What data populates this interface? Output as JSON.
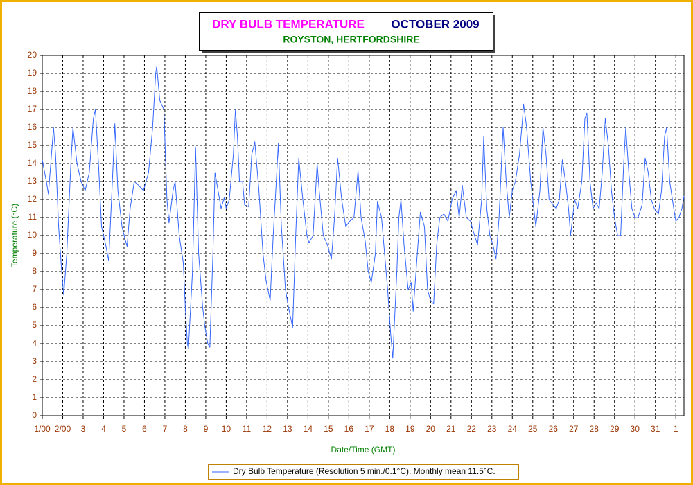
{
  "chart_data": {
    "type": "line",
    "title": "DRY BULB TEMPERATURE",
    "title_period": "OCTOBER 2009",
    "subtitle": "ROYSTON, HERTFORDSHIRE",
    "x_label": "Date/Time (GMT)",
    "y_label": "Temperature (°C)",
    "xlim": [
      0,
      31.4
    ],
    "ylim": [
      0,
      20
    ],
    "xticks": [
      {
        "value": 0,
        "label": "1/00"
      },
      {
        "value": 1,
        "label": "2/00"
      },
      {
        "value": 2,
        "label": "3"
      },
      {
        "value": 3,
        "label": "4"
      },
      {
        "value": 4,
        "label": "5"
      },
      {
        "value": 5,
        "label": "6"
      },
      {
        "value": 6,
        "label": "7"
      },
      {
        "value": 7,
        "label": "8"
      },
      {
        "value": 8,
        "label": "9"
      },
      {
        "value": 9,
        "label": "10"
      },
      {
        "value": 10,
        "label": "11"
      },
      {
        "value": 11,
        "label": "12"
      },
      {
        "value": 12,
        "label": "13"
      },
      {
        "value": 13,
        "label": "14"
      },
      {
        "value": 14,
        "label": "15"
      },
      {
        "value": 15,
        "label": "16"
      },
      {
        "value": 16,
        "label": "17"
      },
      {
        "value": 17,
        "label": "18"
      },
      {
        "value": 18,
        "label": "19"
      },
      {
        "value": 19,
        "label": "20"
      },
      {
        "value": 20,
        "label": "21"
      },
      {
        "value": 21,
        "label": "22"
      },
      {
        "value": 22,
        "label": "23"
      },
      {
        "value": 23,
        "label": "24"
      },
      {
        "value": 24,
        "label": "25"
      },
      {
        "value": 25,
        "label": "26"
      },
      {
        "value": 26,
        "label": "27"
      },
      {
        "value": 27,
        "label": "28"
      },
      {
        "value": 28,
        "label": "29"
      },
      {
        "value": 29,
        "label": "30"
      },
      {
        "value": 30,
        "label": "31"
      },
      {
        "value": 31,
        "label": "1"
      }
    ],
    "yticks": [
      0,
      1,
      2,
      3,
      4,
      5,
      6,
      7,
      8,
      9,
      10,
      11,
      12,
      13,
      14,
      15,
      16,
      17,
      18,
      19,
      20
    ],
    "grid": true,
    "legend": "bottom",
    "x": [
      0,
      0.2,
      0.3,
      0.45,
      0.55,
      0.65,
      0.8,
      0.95,
      1.05,
      1.2,
      1.4,
      1.5,
      1.7,
      1.9,
      2.1,
      2.3,
      2.5,
      2.6,
      2.75,
      2.9,
      3.1,
      3.25,
      3.45,
      3.55,
      3.7,
      3.9,
      4.05,
      4.15,
      4.3,
      4.5,
      4.7,
      4.95,
      5.2,
      5.4,
      5.55,
      5.6,
      5.75,
      5.95,
      6.1,
      6.2,
      6.4,
      6.5,
      6.7,
      6.9,
      7.0,
      7.1,
      7.15,
      7.35,
      7.5,
      7.65,
      7.85,
      7.95,
      8.1,
      8.2,
      8.35,
      8.45,
      8.6,
      8.75,
      8.9,
      9.0,
      9.15,
      9.35,
      9.45,
      9.55,
      9.65,
      9.8,
      9.9,
      10.1,
      10.25,
      10.4,
      10.6,
      10.8,
      10.95,
      11.15,
      11.3,
      11.45,
      11.55,
      11.7,
      11.9,
      12.05,
      12.25,
      12.4,
      12.55,
      12.75,
      12.95,
      13.05,
      13.25,
      13.45,
      13.55,
      13.75,
      13.95,
      14.15,
      14.3,
      14.45,
      14.65,
      14.85,
      15.05,
      15.25,
      15.45,
      15.6,
      15.8,
      15.95,
      16.1,
      16.3,
      16.4,
      16.6,
      16.75,
      16.9,
      17.05,
      17.15,
      17.35,
      17.45,
      17.55,
      17.7,
      17.9,
      18.05,
      18.15,
      18.35,
      18.5,
      18.7,
      18.85,
      19.0,
      19.15,
      19.3,
      19.45,
      19.65,
      19.85,
      20.05,
      20.25,
      20.4,
      20.55,
      20.75,
      20.95,
      21.15,
      21.3,
      21.5,
      21.6,
      21.75,
      21.9,
      22.05,
      22.2,
      22.35,
      22.55,
      22.7,
      22.85,
      23.0,
      23.15,
      23.35,
      23.5,
      23.55,
      23.7,
      23.9,
      24.05,
      24.15,
      24.35,
      24.5,
      24.65,
      24.8,
      25.0,
      25.15,
      25.3,
      25.45,
      25.6,
      25.75,
      25.85,
      26.05,
      26.2,
      26.4,
      26.55,
      26.65,
      26.8,
      26.95,
      27.1,
      27.25,
      27.4,
      27.55,
      27.7,
      27.85,
      28.0,
      28.15,
      28.3,
      28.45,
      28.55,
      28.7,
      28.85,
      29.0,
      29.15,
      29.35,
      29.5,
      29.65,
      29.8,
      29.95,
      30.15,
      30.3,
      30.45,
      30.55,
      30.7,
      30.9,
      31.0,
      31.15,
      31.3,
      31.4
    ],
    "series": [
      {
        "name": "Dry Bulb Temperature (Resolution 5 min./0.1°C). Monthly mean 11.5°C.",
        "color": "#3366ff",
        "values": [
          14.2,
          13.0,
          12.3,
          14.5,
          16.0,
          14.5,
          10.5,
          8.0,
          6.7,
          9.0,
          14.0,
          16.0,
          14.0,
          13.0,
          12.5,
          13.5,
          16.5,
          17.0,
          14.0,
          10.5,
          9.5,
          8.6,
          13.5,
          16.2,
          12.5,
          10.5,
          9.8,
          9.4,
          11.5,
          13.0,
          12.8,
          12.5,
          13.5,
          16.0,
          19.0,
          19.4,
          17.5,
          17.0,
          12.0,
          10.7,
          12.5,
          13.0,
          10.0,
          8.5,
          6.0,
          4.0,
          3.7,
          8.0,
          14.9,
          9.0,
          6.0,
          5.0,
          4.0,
          3.8,
          9.0,
          13.5,
          12.5,
          11.5,
          12.1,
          11.5,
          12.0,
          14.5,
          17.0,
          15.5,
          13.0,
          13.0,
          11.7,
          11.6,
          14.5,
          15.2,
          12.5,
          9.0,
          7.5,
          6.4,
          10.0,
          13.0,
          15.1,
          10.5,
          7.0,
          6.0,
          4.9,
          10.0,
          14.3,
          12.0,
          10.0,
          9.6,
          10.0,
          14.0,
          12.5,
          10.0,
          9.5,
          8.7,
          11.0,
          14.3,
          12.0,
          10.5,
          10.8,
          11.0,
          13.6,
          11.0,
          9.7,
          8.0,
          7.4,
          9.0,
          11.9,
          11.0,
          9.0,
          7.0,
          4.5,
          3.2,
          8.0,
          11.0,
          12.0,
          9.5,
          7.0,
          7.4,
          5.8,
          9.0,
          11.3,
          10.5,
          7.0,
          6.4,
          6.2,
          9.5,
          11.0,
          11.2,
          10.8,
          12.0,
          12.5,
          11.0,
          12.8,
          11.0,
          10.8,
          10.0,
          9.5,
          12.0,
          15.5,
          11.5,
          10.0,
          9.5,
          8.7,
          11.0,
          16.0,
          13.0,
          11.0,
          12.5,
          13.0,
          14.5,
          16.5,
          17.3,
          16.0,
          13.0,
          11.5,
          10.5,
          12.5,
          16.0,
          14.5,
          12.0,
          11.7,
          11.5,
          12.0,
          14.2,
          13.0,
          11.5,
          10.0,
          12.0,
          11.5,
          13.0,
          16.5,
          16.8,
          13.0,
          11.5,
          11.8,
          11.5,
          13.5,
          16.5,
          15.0,
          12.5,
          11.0,
          10.0,
          10.0,
          14.0,
          16.0,
          13.5,
          11.5,
          11.0,
          11.0,
          11.7,
          14.3,
          13.5,
          12.0,
          11.5,
          11.2,
          12.5,
          15.5,
          16.0,
          13.0,
          11.5,
          10.8,
          11.0,
          11.5,
          12.2
        ]
      }
    ]
  }
}
